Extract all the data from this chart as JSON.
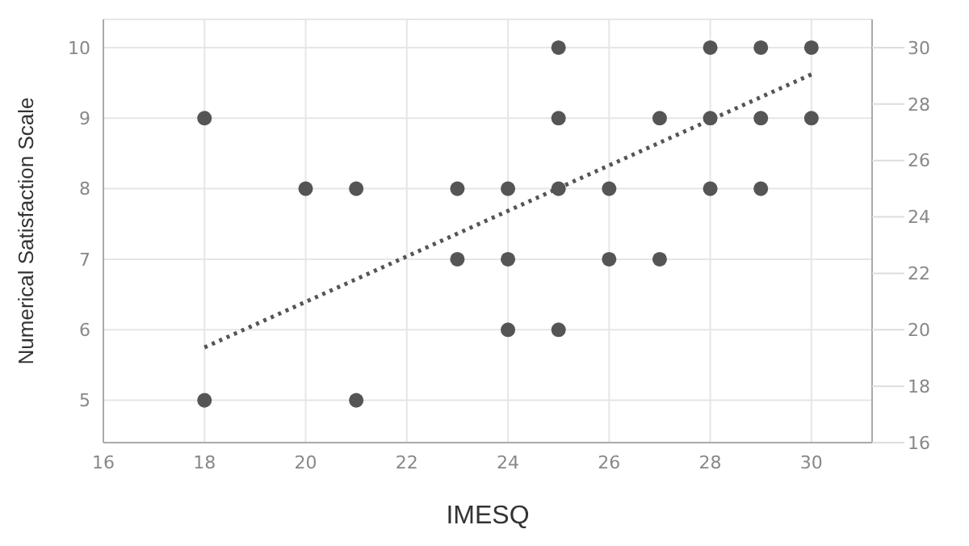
{
  "chart_data": {
    "type": "scatter",
    "xlabel": "IMESQ",
    "ylabel": "Numerical Satisfaction Scale",
    "xlim": [
      16,
      31.2
    ],
    "xticks": [
      16,
      18,
      20,
      22,
      24,
      26,
      28,
      30
    ],
    "ylim": [
      4.4,
      10.4
    ],
    "yticks": [
      5,
      6,
      7,
      8,
      9,
      10
    ],
    "y2lim": [
      16,
      31
    ],
    "y2ticks": [
      16,
      18,
      20,
      22,
      24,
      26,
      28,
      30
    ],
    "grid": true,
    "marker": "circle",
    "series": [
      {
        "color": "#555555",
        "x": [
          25,
          28,
          29,
          30,
          18,
          25,
          27,
          28,
          29,
          30,
          20,
          21,
          23,
          24,
          25,
          26,
          28,
          29,
          23,
          24,
          26,
          27,
          24,
          25,
          18,
          21
        ],
        "values": [
          10,
          10,
          10,
          10,
          9,
          9,
          9,
          9,
          9,
          9,
          8,
          8,
          8,
          8,
          8,
          8,
          8,
          8,
          7,
          7,
          7,
          7,
          6,
          6,
          5,
          5
        ]
      },
      {
        "type": "line",
        "color": "#555555",
        "line_style": "dotted",
        "marker": "none",
        "x": [
          18,
          30
        ],
        "values": [
          5.75,
          9.62
        ]
      }
    ]
  }
}
